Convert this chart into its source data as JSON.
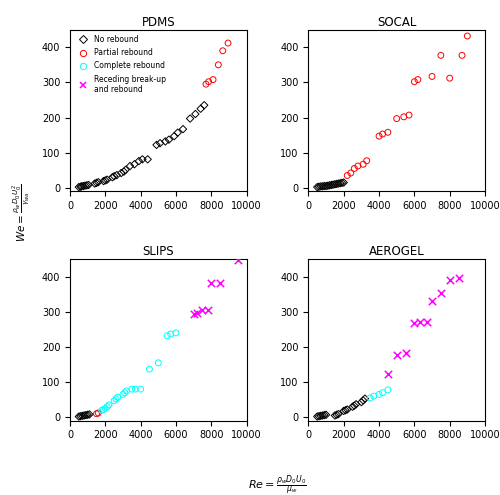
{
  "pdms": {
    "title": "PDMS",
    "no_rebound": {
      "re": [
        500,
        600,
        650,
        750,
        850,
        950,
        1050,
        1400,
        1500,
        1600,
        1900,
        2000,
        2100,
        2400,
        2500,
        2650,
        2900,
        3050,
        3150,
        3400,
        3650,
        3900,
        4100,
        4400,
        4900,
        5100,
        5400,
        5600,
        5900,
        6100,
        6400,
        6800,
        7100,
        7400,
        7600
      ],
      "we": [
        2,
        3,
        4,
        5,
        6,
        7,
        8,
        12,
        14,
        16,
        19,
        21,
        23,
        30,
        33,
        36,
        42,
        46,
        51,
        62,
        67,
        76,
        81,
        81,
        122,
        127,
        132,
        137,
        147,
        157,
        167,
        197,
        210,
        225,
        235
      ]
    },
    "partial_rebound": {
      "re": [
        7700,
        7850,
        8100,
        8400,
        8650,
        8950
      ],
      "we": [
        295,
        302,
        308,
        350,
        390,
        412
      ]
    },
    "complete_rebound": {
      "re": [],
      "we": []
    },
    "receding": {
      "re": [],
      "we": []
    }
  },
  "socal": {
    "title": "SOCAL",
    "no_rebound": {
      "re": [
        500,
        600,
        700,
        800,
        900,
        1000,
        1100,
        1200,
        1300,
        1400,
        1500,
        1600,
        1700,
        1800,
        1900,
        2000
      ],
      "we": [
        2,
        3,
        4,
        4,
        5,
        5,
        6,
        7,
        8,
        9,
        10,
        11,
        12,
        13,
        14,
        15
      ]
    },
    "partial_rebound": {
      "re": [
        2200,
        2400,
        2600,
        2800,
        3100,
        3300,
        4000,
        4200,
        4500,
        5000,
        5400,
        5700,
        6000,
        6200,
        7000,
        7500,
        8000,
        8700,
        9000
      ],
      "we": [
        35,
        42,
        55,
        62,
        67,
        77,
        147,
        153,
        158,
        197,
        202,
        207,
        302,
        308,
        317,
        377,
        312,
        377,
        432
      ]
    },
    "complete_rebound": {
      "re": [],
      "we": []
    },
    "receding": {
      "re": [],
      "we": []
    }
  },
  "slips": {
    "title": "SLIPS",
    "no_rebound": {
      "re": [
        500,
        600,
        700,
        800,
        900,
        1000,
        1100
      ],
      "we": [
        2,
        3,
        4,
        5,
        6,
        7,
        8
      ]
    },
    "partial_rebound": {
      "re": [
        1500,
        1600
      ],
      "we": [
        10,
        12
      ]
    },
    "complete_rebound": {
      "re": [
        1800,
        1900,
        2000,
        2100,
        2200,
        2500,
        2600,
        2700,
        3000,
        3100,
        3200,
        3500,
        3700,
        4000,
        4500,
        5000,
        5500,
        5700,
        6000
      ],
      "we": [
        20,
        22,
        25,
        30,
        35,
        47,
        52,
        57,
        65,
        70,
        75,
        80,
        80,
        80,
        137,
        155,
        232,
        237,
        240
      ]
    },
    "receding": {
      "re": [
        7000,
        7200,
        7500,
        7800,
        8000,
        8500,
        9500
      ],
      "we": [
        293,
        298,
        305,
        305,
        382,
        382,
        447
      ]
    }
  },
  "aerogel": {
    "title": "AEROGEL",
    "no_rebound": {
      "re": [
        500,
        600,
        700,
        800,
        900,
        1000,
        1500,
        1600,
        1700,
        2000,
        2100,
        2200,
        2500,
        2600,
        2700,
        3000,
        3100,
        3200
      ],
      "we": [
        2,
        3,
        4,
        5,
        6,
        7,
        5,
        7,
        9,
        18,
        20,
        22,
        30,
        33,
        37,
        43,
        48,
        53
      ]
    },
    "partial_rebound": {
      "re": [],
      "we": []
    },
    "complete_rebound": {
      "re": [
        3500,
        3700,
        4000,
        4200,
        4500
      ],
      "we": [
        55,
        60,
        65,
        70,
        78
      ]
    },
    "receding": {
      "re": [
        4500,
        5000,
        5500,
        6000,
        6300,
        6700,
        7000,
        7500,
        8000,
        8500
      ],
      "we": [
        122,
        177,
        182,
        267,
        270,
        272,
        332,
        355,
        392,
        395
      ]
    }
  },
  "xlim": [
    0,
    10000
  ],
  "ylim": [
    -10,
    450
  ],
  "xticks": [
    0,
    2000,
    4000,
    6000,
    8000,
    10000
  ],
  "yticks": [
    0,
    100,
    200,
    300,
    400
  ]
}
